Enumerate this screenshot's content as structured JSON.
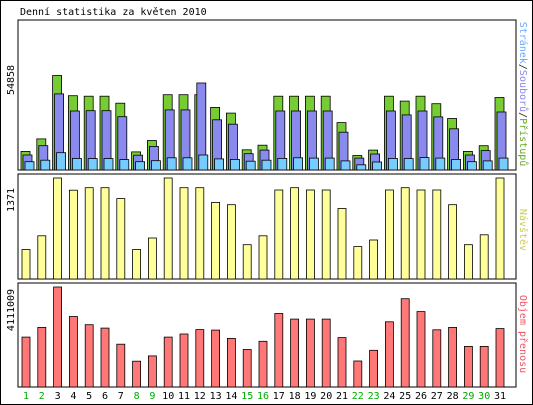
{
  "chart_data": [
    {
      "type": "bar",
      "title": "Denní statistika za květen 2010",
      "ylabel_max": "54858",
      "legend_text": [
        "Stránek",
        "/",
        "Souborů",
        "/",
        "Přístupů"
      ],
      "legend_colors": [
        "#66aaff",
        "#222222",
        "#8888ee",
        "#222222",
        "#66aa22"
      ],
      "ylim": [
        0,
        54858
      ],
      "series": [
        {
          "name": "Přístupů",
          "color": "#77cc33",
          "values": [
            7200,
            12000,
            36500,
            28700,
            28500,
            28500,
            25800,
            7000,
            11400,
            29100,
            29100,
            29100,
            24200,
            22000,
            7800,
            9600,
            28500,
            28500,
            28500,
            28500,
            18300,
            5600,
            7700,
            28500,
            26600,
            28500,
            25600,
            19900,
            7200,
            9400,
            28000
          ]
        },
        {
          "name": "Souborů",
          "color": "#8a8aee",
          "values": [
            5800,
            9400,
            29400,
            22800,
            22900,
            22900,
            20600,
            5700,
            9100,
            23200,
            23200,
            33600,
            19400,
            17700,
            6300,
            7700,
            22800,
            22800,
            22800,
            22800,
            14600,
            4600,
            6200,
            22800,
            21300,
            22800,
            20500,
            15900,
            5800,
            7500,
            22400
          ]
        },
        {
          "name": "Stránek",
          "color": "#77ccff",
          "values": [
            3200,
            3800,
            6700,
            4500,
            4400,
            4400,
            4000,
            3200,
            3600,
            4700,
            4700,
            5800,
            4300,
            4100,
            3400,
            3800,
            4500,
            4700,
            4600,
            4600,
            3500,
            2000,
            3100,
            4500,
            4400,
            4800,
            4600,
            4100,
            3200,
            3500,
            4600
          ]
        }
      ]
    },
    {
      "type": "bar",
      "ylabel_max": "1371",
      "legend_text": [
        "Návštěv"
      ],
      "legend_colors": [
        "#cccc55"
      ],
      "ylim": [
        0,
        1371
      ],
      "series": [
        {
          "name": "Návštěv",
          "color": "#ffff99",
          "values": [
            400,
            586,
            1371,
            1205,
            1240,
            1240,
            1092,
            400,
            556,
            1371,
            1240,
            1240,
            1040,
            1008,
            466,
            586,
            1208,
            1240,
            1208,
            1208,
            957,
            440,
            530,
            1208,
            1240,
            1208,
            1208,
            1008,
            466,
            600,
            1371
          ]
        }
      ]
    },
    {
      "type": "bar",
      "ylabel_max": "4111009",
      "legend_text": [
        "Objem přenosu"
      ],
      "legend_colors": [
        "#ee5566"
      ],
      "ylim": [
        0,
        4111009
      ],
      "series": [
        {
          "name": "Objem přenosu",
          "color": "#ff7777",
          "values": [
            2050000,
            2450000,
            4111009,
            2900000,
            2560000,
            2420000,
            1760000,
            1060000,
            1280000,
            2050000,
            2180000,
            2360000,
            2340000,
            2000000,
            1540000,
            1880000,
            3020000,
            2790000,
            2790000,
            2790000,
            2030000,
            1070000,
            1510000,
            2680000,
            3630000,
            3100000,
            2350000,
            2450000,
            1670000,
            1670000,
            2400000
          ]
        }
      ]
    }
  ],
  "categories": [
    "1",
    "2",
    "3",
    "4",
    "5",
    "6",
    "7",
    "8",
    "9",
    "10",
    "11",
    "12",
    "13",
    "14",
    "15",
    "16",
    "17",
    "18",
    "19",
    "20",
    "21",
    "22",
    "23",
    "24",
    "25",
    "26",
    "27",
    "28",
    "29",
    "30",
    "31"
  ],
  "weekend_days": [
    "1",
    "2",
    "8",
    "9",
    "15",
    "16",
    "22",
    "23",
    "29",
    "30"
  ],
  "label_colors": {
    "weekday": "#000000",
    "weekend": "#00aa00",
    "axis_text": "#000000"
  }
}
